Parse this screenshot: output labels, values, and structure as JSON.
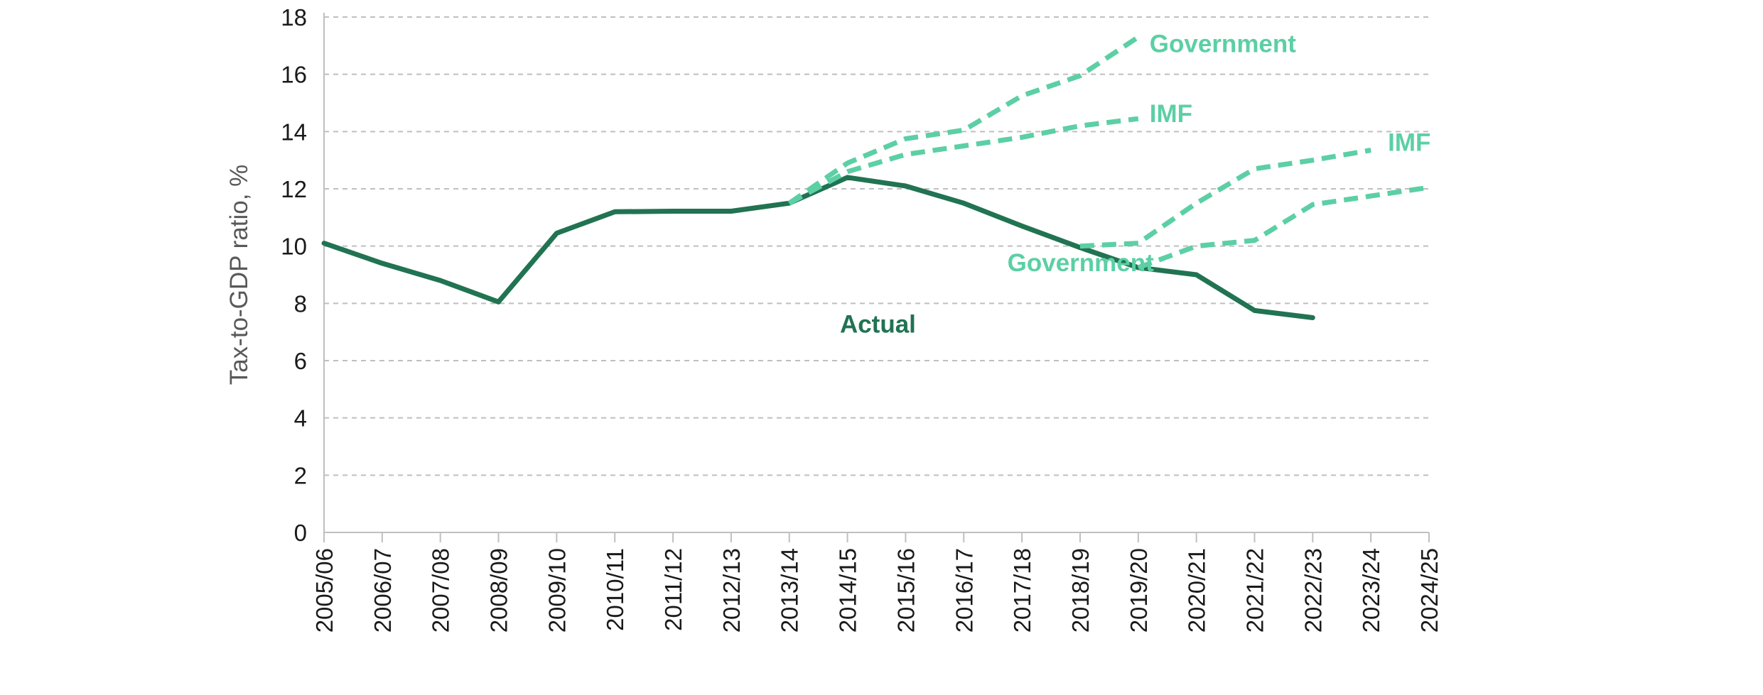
{
  "chart_data": {
    "type": "line",
    "title": "",
    "xlabel": "",
    "ylabel": "Tax-to-GDP ratio, %",
    "ylim": [
      0,
      18
    ],
    "yticks": [
      0,
      2,
      4,
      6,
      8,
      10,
      12,
      14,
      16,
      18
    ],
    "grid": "horizontal dashed",
    "categories": [
      "2005/06",
      "2006/07",
      "2007/08",
      "2008/09",
      "2009/10",
      "2010/11",
      "2011/12",
      "2012/13",
      "2013/14",
      "2014/15",
      "2015/16",
      "2016/17",
      "2017/18",
      "2018/19",
      "2019/20",
      "2020/21",
      "2021/22",
      "2022/23",
      "2023/24",
      "2024/25"
    ],
    "series": [
      {
        "name": "Actual",
        "style": "solid",
        "color": "#217352",
        "values": [
          10.1,
          9.4,
          8.8,
          8.05,
          10.45,
          11.2,
          11.22,
          11.22,
          11.5,
          12.4,
          12.1,
          11.5,
          10.7,
          9.95,
          9.25,
          9.0,
          7.75,
          7.5,
          null,
          null
        ]
      },
      {
        "name": "Government",
        "style": "dashed",
        "color": "#5ccfa5",
        "values": [
          null,
          null,
          null,
          null,
          null,
          null,
          null,
          null,
          11.5,
          12.9,
          13.75,
          14.05,
          15.25,
          15.95,
          17.3,
          null,
          null,
          null,
          null,
          null
        ]
      },
      {
        "name": "IMF",
        "style": "dashed",
        "color": "#5ccfa5",
        "values": [
          null,
          null,
          null,
          null,
          null,
          null,
          null,
          null,
          11.5,
          12.6,
          13.2,
          13.5,
          13.8,
          14.2,
          14.45,
          null,
          null,
          null,
          null,
          null
        ]
      },
      {
        "name": "IMF",
        "style": "dashed",
        "color": "#5ccfa5",
        "values": [
          null,
          null,
          null,
          null,
          null,
          null,
          null,
          null,
          null,
          null,
          null,
          null,
          null,
          10.0,
          10.1,
          11.5,
          12.7,
          13.0,
          13.35,
          null
        ]
      },
      {
        "name": "Government",
        "style": "dashed",
        "color": "#5ccfa5",
        "values": [
          null,
          null,
          null,
          null,
          null,
          null,
          null,
          null,
          null,
          null,
          null,
          null,
          null,
          null,
          9.25,
          10.0,
          10.2,
          11.45,
          11.75,
          12.05
        ]
      }
    ],
    "annotations": [
      {
        "text": "Government",
        "color": "#5ccfa5",
        "at_category": "2019/20",
        "y": 17.1
      },
      {
        "text": "IMF",
        "color": "#5ccfa5",
        "at_category": "2019/20",
        "y": 14.65
      },
      {
        "text": "IMF",
        "color": "#5ccfa5",
        "at_category": "2023/24",
        "y": 13.65
      },
      {
        "text": "Government",
        "color": "#5ccfa5",
        "at_category": "2020/21",
        "y": 9.45
      },
      {
        "text": "Actual",
        "color": "#217352",
        "at_category": "2018/19",
        "y": 7.3
      }
    ]
  }
}
